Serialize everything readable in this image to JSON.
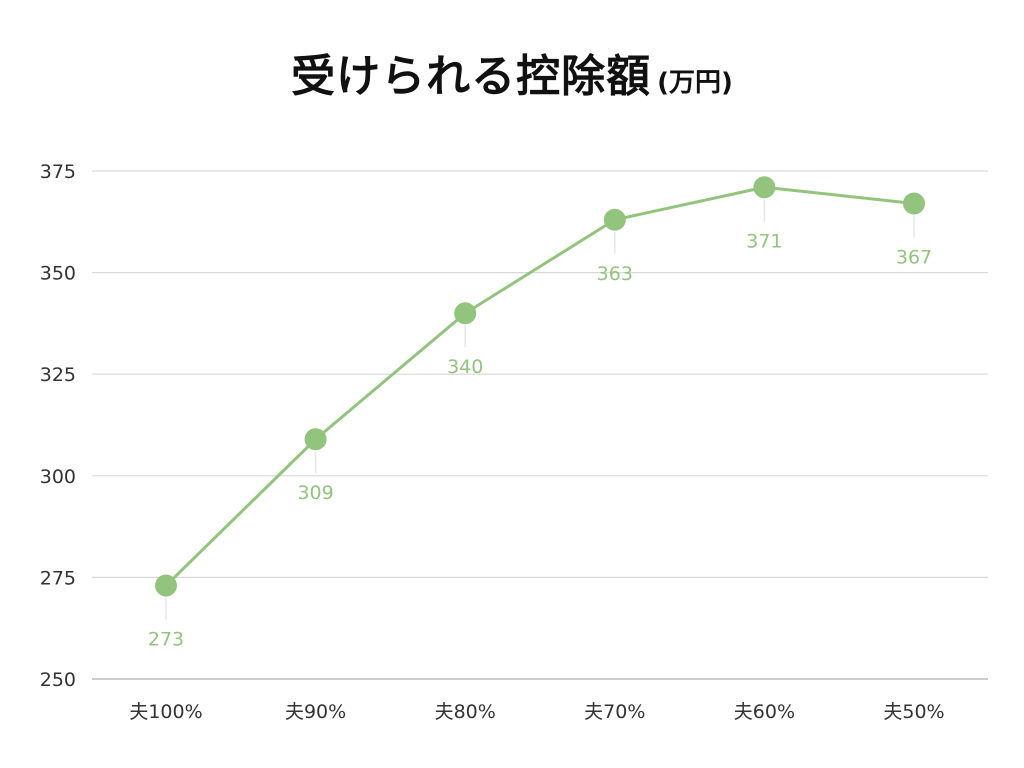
{
  "header": {
    "title": "受けられる控除額",
    "unit": "(万円)"
  },
  "chart_data": {
    "type": "line",
    "title": "受けられる控除額 (万円)",
    "categories": [
      "夫100%",
      "夫90%",
      "夫80%",
      "夫70%",
      "夫60%",
      "夫50%"
    ],
    "values": [
      273,
      309,
      340,
      363,
      371,
      367
    ],
    "data_labels": [
      "273",
      "309",
      "340",
      "363",
      "371",
      "367"
    ],
    "ylim": [
      250,
      375
    ],
    "yticks": [
      250,
      275,
      300,
      325,
      350,
      375
    ],
    "ytick_labels": [
      "250",
      "275",
      "300",
      "325",
      "350",
      "375"
    ],
    "grid": true,
    "legend": "none",
    "series_color": "#93c47d",
    "label_color": "#93c47d"
  }
}
